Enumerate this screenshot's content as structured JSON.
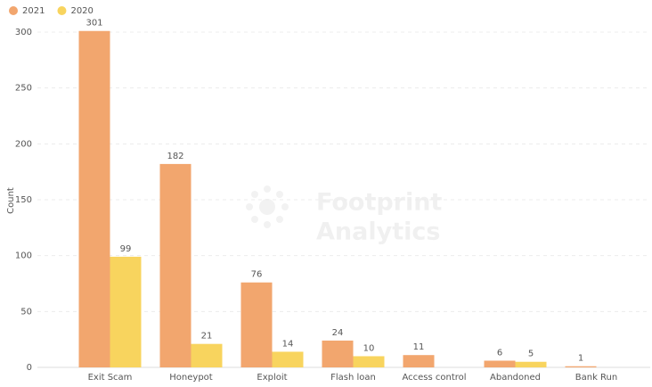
{
  "chart_data": {
    "type": "bar",
    "y_label": "Count",
    "watermark": [
      "Footprint",
      "Analytics"
    ],
    "categories": [
      "Exit Scam",
      "Honeypot",
      "Exploit",
      "Flash loan",
      "Access control",
      "Abandoned",
      "Bank Run"
    ],
    "series": [
      {
        "name": "2021",
        "color": "#f2a66e",
        "values": [
          301,
          182,
          76,
          24,
          11,
          6,
          1
        ]
      },
      {
        "name": "2020",
        "color": "#f8d45e",
        "values": [
          99,
          21,
          14,
          10,
          null,
          5,
          null
        ]
      }
    ],
    "ylim": [
      0,
      300
    ],
    "yticks": [
      0,
      50,
      100,
      150,
      200,
      250,
      300
    ],
    "grid": true,
    "legend": "top-left"
  }
}
